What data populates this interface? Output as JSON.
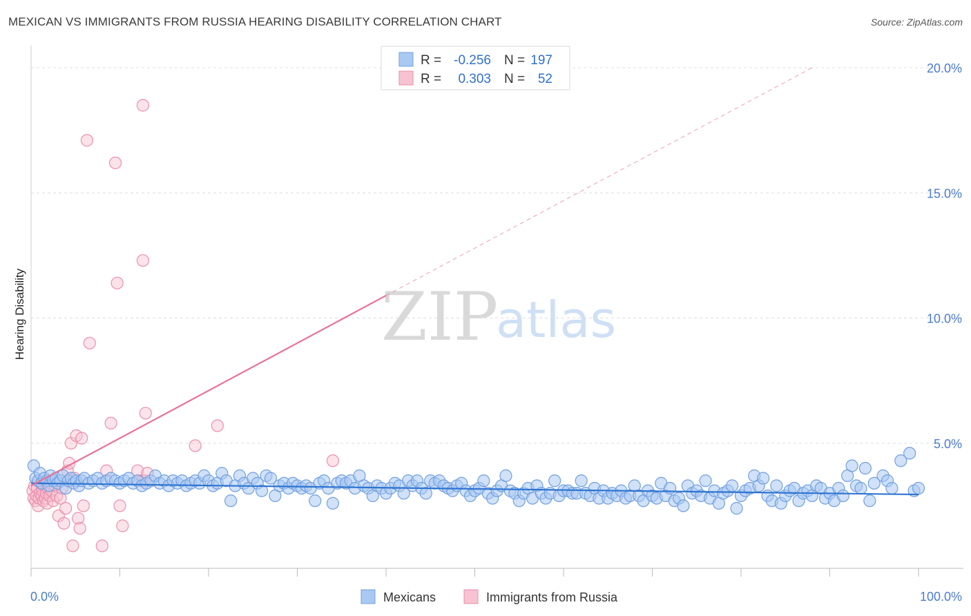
{
  "header": {
    "title": "MEXICAN VS IMMIGRANTS FROM RUSSIA HEARING DISABILITY CORRELATION CHART",
    "source": "Source: ZipAtlas.com"
  },
  "colors": {
    "blue_fill": "#a9c8f2",
    "blue_stroke": "#6f9fe0",
    "blue_line": "#2f74d0",
    "pink_fill": "#f7c2d1",
    "pink_stroke": "#ec8fac",
    "pink_line": "#e8719a",
    "tick_text": "#4a7bd0",
    "grid": "#dddddd"
  },
  "legend_top": {
    "rows": [
      {
        "r_label": "R =",
        "r_value": "-0.256",
        "n_label": "N =",
        "n_value": "197",
        "color": "blue"
      },
      {
        "r_label": "R =",
        "r_value": "0.303",
        "n_label": "N =",
        "n_value": "52",
        "color": "pink"
      }
    ]
  },
  "legend_bottom": {
    "items": [
      {
        "label": "Mexicans",
        "color": "blue"
      },
      {
        "label": "Immigrants from Russia",
        "color": "pink"
      }
    ]
  },
  "watermark": {
    "zip": "ZIP",
    "atlas": "atlas"
  },
  "chart_data": {
    "type": "scatter",
    "title": "MEXICAN VS IMMIGRANTS FROM RUSSIA HEARING DISABILITY CORRELATION CHART",
    "xlabel": "",
    "ylabel": "Hearing Disability",
    "xlim": [
      0,
      100
    ],
    "ylim": [
      0,
      20.5
    ],
    "x_tick_labels": [
      "0.0%",
      "100.0%"
    ],
    "y_ticks": [
      5,
      10,
      15,
      20
    ],
    "y_tick_labels": [
      "5.0%",
      "10.0%",
      "15.0%",
      "20.0%"
    ],
    "grid": true,
    "legend_position": "top-center",
    "series": [
      {
        "name": "Mexicans",
        "color": "blue",
        "R": -0.256,
        "N": 197,
        "trend": {
          "x": [
            0,
            100
          ],
          "y": [
            3.4,
            2.95
          ]
        },
        "points": [
          [
            0.3,
            4.1
          ],
          [
            0.5,
            3.6
          ],
          [
            0.8,
            3.5
          ],
          [
            1.0,
            3.8
          ],
          [
            1.2,
            3.4
          ],
          [
            1.5,
            3.6
          ],
          [
            1.8,
            3.5
          ],
          [
            2.0,
            3.3
          ],
          [
            2.2,
            3.7
          ],
          [
            2.5,
            3.5
          ],
          [
            2.8,
            3.6
          ],
          [
            3.0,
            3.4
          ],
          [
            3.3,
            3.5
          ],
          [
            3.6,
            3.7
          ],
          [
            3.9,
            3.2
          ],
          [
            4.2,
            3.5
          ],
          [
            4.5,
            3.6
          ],
          [
            4.8,
            3.4
          ],
          [
            5.1,
            3.5
          ],
          [
            5.4,
            3.3
          ],
          [
            5.7,
            3.5
          ],
          [
            6.0,
            3.6
          ],
          [
            6.5,
            3.4
          ],
          [
            7.0,
            3.5
          ],
          [
            7.5,
            3.6
          ],
          [
            8.0,
            3.4
          ],
          [
            8.5,
            3.5
          ],
          [
            9.0,
            3.6
          ],
          [
            9.5,
            3.5
          ],
          [
            10.0,
            3.4
          ],
          [
            10.5,
            3.5
          ],
          [
            11.0,
            3.6
          ],
          [
            11.5,
            3.4
          ],
          [
            12.0,
            3.5
          ],
          [
            12.5,
            3.3
          ],
          [
            13.0,
            3.4
          ],
          [
            13.5,
            3.5
          ],
          [
            14.0,
            3.7
          ],
          [
            14.5,
            3.4
          ],
          [
            15.0,
            3.5
          ],
          [
            15.5,
            3.3
          ],
          [
            16.0,
            3.5
          ],
          [
            16.5,
            3.4
          ],
          [
            17.0,
            3.5
          ],
          [
            17.5,
            3.3
          ],
          [
            18.0,
            3.4
          ],
          [
            18.5,
            3.5
          ],
          [
            19.0,
            3.4
          ],
          [
            19.5,
            3.7
          ],
          [
            20.0,
            3.5
          ],
          [
            20.5,
            3.3
          ],
          [
            21.0,
            3.4
          ],
          [
            21.5,
            3.8
          ],
          [
            22.0,
            3.5
          ],
          [
            22.5,
            2.7
          ],
          [
            23.0,
            3.3
          ],
          [
            23.5,
            3.7
          ],
          [
            24.0,
            3.4
          ],
          [
            24.5,
            3.2
          ],
          [
            25.0,
            3.6
          ],
          [
            25.5,
            3.4
          ],
          [
            26.0,
            3.1
          ],
          [
            26.5,
            3.7
          ],
          [
            27.0,
            3.6
          ],
          [
            27.5,
            2.9
          ],
          [
            28.0,
            3.3
          ],
          [
            28.5,
            3.4
          ],
          [
            29.0,
            3.2
          ],
          [
            29.5,
            3.4
          ],
          [
            30.0,
            3.3
          ],
          [
            30.5,
            3.2
          ],
          [
            31.0,
            3.3
          ],
          [
            31.5,
            3.2
          ],
          [
            32.0,
            2.7
          ],
          [
            32.5,
            3.4
          ],
          [
            33.0,
            3.5
          ],
          [
            33.5,
            3.2
          ],
          [
            34.0,
            2.6
          ],
          [
            34.5,
            3.4
          ],
          [
            35.0,
            3.5
          ],
          [
            35.5,
            3.4
          ],
          [
            36.0,
            3.5
          ],
          [
            36.5,
            3.2
          ],
          [
            37.0,
            3.7
          ],
          [
            37.5,
            3.3
          ],
          [
            38.0,
            3.2
          ],
          [
            38.5,
            2.9
          ],
          [
            39.0,
            3.3
          ],
          [
            39.5,
            3.2
          ],
          [
            40.0,
            3.0
          ],
          [
            40.5,
            3.2
          ],
          [
            41.0,
            3.4
          ],
          [
            41.5,
            3.3
          ],
          [
            42.0,
            3.0
          ],
          [
            42.5,
            3.5
          ],
          [
            43.0,
            3.3
          ],
          [
            43.5,
            3.5
          ],
          [
            44.0,
            3.2
          ],
          [
            44.5,
            3.0
          ],
          [
            45.0,
            3.5
          ],
          [
            45.5,
            3.4
          ],
          [
            46.0,
            3.5
          ],
          [
            46.5,
            3.3
          ],
          [
            47.0,
            3.2
          ],
          [
            47.5,
            3.1
          ],
          [
            48.0,
            3.3
          ],
          [
            48.5,
            3.4
          ],
          [
            49.0,
            3.1
          ],
          [
            49.5,
            2.9
          ],
          [
            50.0,
            3.1
          ],
          [
            50.5,
            3.2
          ],
          [
            51.0,
            3.5
          ],
          [
            51.5,
            3.0
          ],
          [
            52.0,
            2.8
          ],
          [
            52.5,
            3.1
          ],
          [
            53.0,
            3.3
          ],
          [
            53.5,
            3.7
          ],
          [
            54.0,
            3.1
          ],
          [
            54.5,
            3.0
          ],
          [
            55.0,
            2.7
          ],
          [
            55.5,
            3.0
          ],
          [
            56.0,
            3.2
          ],
          [
            56.5,
            2.8
          ],
          [
            57.0,
            3.3
          ],
          [
            57.5,
            3.0
          ],
          [
            58.0,
            2.8
          ],
          [
            58.5,
            3.0
          ],
          [
            59.0,
            3.5
          ],
          [
            59.5,
            2.9
          ],
          [
            60.0,
            3.1
          ],
          [
            60.5,
            3.1
          ],
          [
            61.0,
            3.0
          ],
          [
            61.5,
            3.0
          ],
          [
            62.0,
            3.5
          ],
          [
            62.5,
            3.0
          ],
          [
            63.0,
            2.9
          ],
          [
            63.5,
            3.2
          ],
          [
            64.0,
            2.8
          ],
          [
            64.5,
            3.1
          ],
          [
            65.0,
            2.8
          ],
          [
            65.5,
            3.0
          ],
          [
            66.0,
            2.9
          ],
          [
            66.5,
            3.1
          ],
          [
            67.0,
            2.8
          ],
          [
            67.5,
            2.9
          ],
          [
            68.0,
            3.3
          ],
          [
            68.5,
            2.9
          ],
          [
            69.0,
            2.7
          ],
          [
            69.5,
            3.1
          ],
          [
            70.0,
            2.9
          ],
          [
            70.5,
            2.8
          ],
          [
            71.0,
            3.4
          ],
          [
            71.5,
            2.9
          ],
          [
            72.0,
            3.2
          ],
          [
            72.5,
            2.7
          ],
          [
            73.0,
            2.8
          ],
          [
            73.5,
            2.5
          ],
          [
            74.0,
            3.3
          ],
          [
            74.5,
            3.0
          ],
          [
            75.0,
            3.1
          ],
          [
            75.5,
            2.9
          ],
          [
            76.0,
            3.5
          ],
          [
            76.5,
            2.8
          ],
          [
            77.0,
            3.1
          ],
          [
            77.5,
            2.6
          ],
          [
            78.0,
            3.0
          ],
          [
            78.5,
            3.1
          ],
          [
            79.0,
            3.3
          ],
          [
            79.5,
            2.4
          ],
          [
            80.0,
            2.9
          ],
          [
            80.5,
            3.1
          ],
          [
            81.0,
            3.2
          ],
          [
            81.5,
            3.7
          ],
          [
            82.0,
            3.3
          ],
          [
            82.5,
            3.6
          ],
          [
            83.0,
            2.9
          ],
          [
            83.5,
            2.7
          ],
          [
            84.0,
            3.3
          ],
          [
            84.5,
            2.6
          ],
          [
            85.0,
            2.9
          ],
          [
            85.5,
            3.1
          ],
          [
            86.0,
            3.2
          ],
          [
            86.5,
            2.7
          ],
          [
            87.0,
            3.0
          ],
          [
            87.5,
            3.1
          ],
          [
            88.0,
            2.9
          ],
          [
            88.5,
            3.3
          ],
          [
            89.0,
            3.2
          ],
          [
            89.5,
            2.8
          ],
          [
            90.0,
            3.0
          ],
          [
            90.5,
            2.7
          ],
          [
            91.0,
            3.2
          ],
          [
            91.5,
            2.9
          ],
          [
            92.0,
            3.7
          ],
          [
            92.5,
            4.1
          ],
          [
            93.0,
            3.3
          ],
          [
            93.5,
            3.2
          ],
          [
            94.0,
            4.0
          ],
          [
            94.5,
            2.7
          ],
          [
            95.0,
            3.4
          ],
          [
            96.0,
            3.7
          ],
          [
            96.5,
            3.5
          ],
          [
            97.0,
            3.2
          ],
          [
            98.0,
            4.3
          ],
          [
            99.0,
            4.6
          ],
          [
            99.5,
            3.1
          ],
          [
            100.0,
            3.2
          ]
        ]
      },
      {
        "name": "Immigrants from Russia",
        "color": "pink",
        "R": 0.303,
        "N": 52,
        "trend": {
          "x": [
            0,
            40
          ],
          "y": [
            3.3,
            10.9
          ]
        },
        "trend_extension": {
          "x": [
            40,
            88
          ],
          "y": [
            10.9,
            20.0
          ]
        },
        "points": [
          [
            0.2,
            3.1
          ],
          [
            0.3,
            2.8
          ],
          [
            0.4,
            3.3
          ],
          [
            0.5,
            2.7
          ],
          [
            0.6,
            2.9
          ],
          [
            0.7,
            3.2
          ],
          [
            0.8,
            2.5
          ],
          [
            0.9,
            2.8
          ],
          [
            1.0,
            3.0
          ],
          [
            1.1,
            3.4
          ],
          [
            1.2,
            2.9
          ],
          [
            1.3,
            3.1
          ],
          [
            1.4,
            2.7
          ],
          [
            1.5,
            3.3
          ],
          [
            1.6,
            2.8
          ],
          [
            1.7,
            3.0
          ],
          [
            1.8,
            2.6
          ],
          [
            1.9,
            3.2
          ],
          [
            2.0,
            3.5
          ],
          [
            2.1,
            2.9
          ],
          [
            2.3,
            3.1
          ],
          [
            2.5,
            2.7
          ],
          [
            2.7,
            3.3
          ],
          [
            2.9,
            2.9
          ],
          [
            3.1,
            2.1
          ],
          [
            3.3,
            2.8
          ],
          [
            3.5,
            3.2
          ],
          [
            3.7,
            1.8
          ],
          [
            3.9,
            2.4
          ],
          [
            4.1,
            3.9
          ],
          [
            4.3,
            4.2
          ],
          [
            4.5,
            5.0
          ],
          [
            4.7,
            0.9
          ],
          [
            4.9,
            3.6
          ],
          [
            5.1,
            5.3
          ],
          [
            5.3,
            2.0
          ],
          [
            5.5,
            1.6
          ],
          [
            5.7,
            5.2
          ],
          [
            5.9,
            2.5
          ],
          [
            6.3,
            17.1
          ],
          [
            6.6,
            9.0
          ],
          [
            8.0,
            0.9
          ],
          [
            8.5,
            3.9
          ],
          [
            9.0,
            5.8
          ],
          [
            9.5,
            16.2
          ],
          [
            9.7,
            11.4
          ],
          [
            10.0,
            2.5
          ],
          [
            10.3,
            1.7
          ],
          [
            12.0,
            3.9
          ],
          [
            12.5,
            3.5
          ],
          [
            12.8,
            3.5
          ],
          [
            12.6,
            12.3
          ],
          [
            12.6,
            18.5
          ],
          [
            12.9,
            6.2
          ],
          [
            13.1,
            3.8
          ],
          [
            18.5,
            4.9
          ],
          [
            21.0,
            5.7
          ],
          [
            34.0,
            4.3
          ]
        ]
      }
    ]
  }
}
